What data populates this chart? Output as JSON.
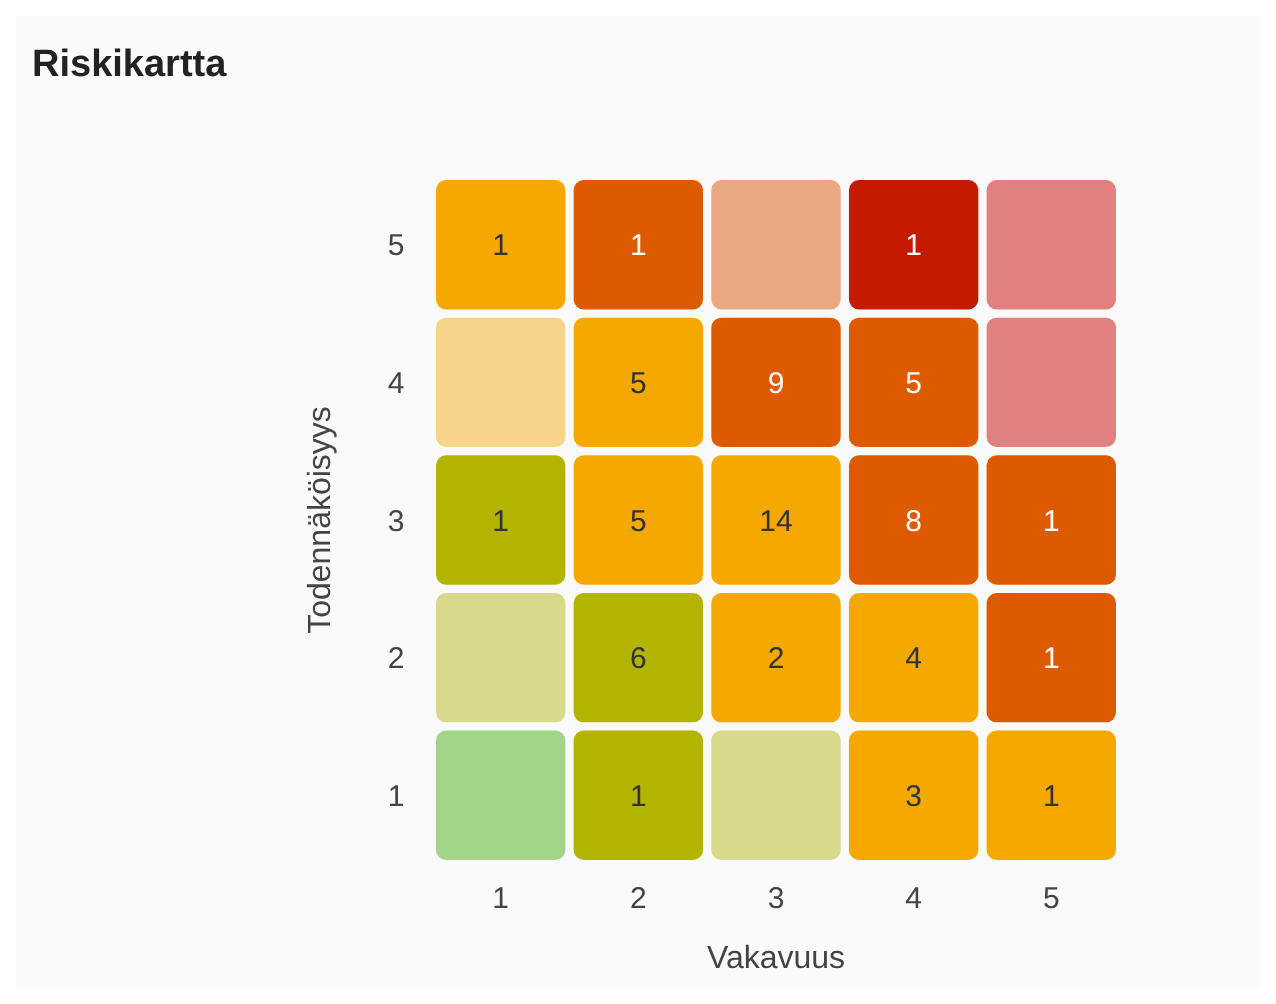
{
  "chart_data": {
    "type": "heatmap",
    "data_labels": true,
    "title": "Riskikartta",
    "xlabel": "Vakavuus",
    "ylabel": "Todennäköisyys",
    "categories": [
      "1",
      "2",
      "3",
      "4",
      "5"
    ],
    "y_categories": [
      "5",
      "4",
      "3",
      "2",
      "1"
    ],
    "cells": [
      [
        1,
        1,
        null,
        1,
        null
      ],
      [
        null,
        5,
        9,
        5,
        null
      ],
      [
        1,
        5,
        14,
        8,
        1
      ],
      [
        null,
        6,
        2,
        4,
        1
      ],
      [
        null,
        1,
        null,
        3,
        1
      ]
    ],
    "colors": [
      [
        "#f5a800",
        "#dd5a00",
        "#eaa882",
        "#c41a00",
        "#e08080"
      ],
      [
        "#f7d48a",
        "#f5a800",
        "#dd5a00",
        "#dd5a00",
        "#e08080"
      ],
      [
        "#b3b400",
        "#f5a800",
        "#f5a800",
        "#dd5a00",
        "#dd5a00"
      ],
      [
        "#d8d98a",
        "#b3b400",
        "#f5a800",
        "#f5a800",
        "#dd5a00"
      ],
      [
        "#a2d48a",
        "#b3b400",
        "#d8d98a",
        "#f5a800",
        "#f5a800"
      ]
    ]
  }
}
